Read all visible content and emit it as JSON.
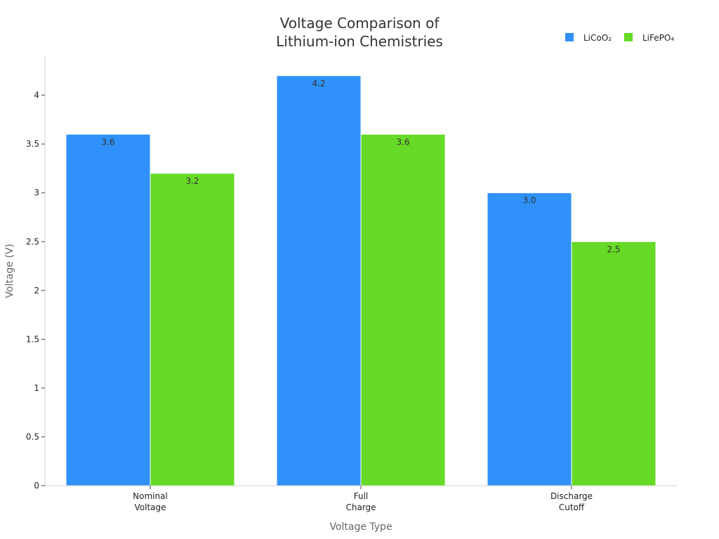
{
  "chart_data": {
    "type": "bar",
    "title": [
      "Voltage Comparison of",
      "Lithium-ion Chemistries"
    ],
    "xlabel": "Voltage Type",
    "ylabel": "Voltage (V)",
    "categories": [
      [
        "Nominal",
        "Voltage"
      ],
      [
        "Full",
        "Charge"
      ],
      [
        "Discharge",
        "Cutoff"
      ]
    ],
    "series": [
      {
        "name": "LiCoO₂",
        "color": "#2F91F9",
        "values": [
          3.6,
          4.2,
          3.0
        ],
        "labels": [
          "3.6",
          "4.2",
          "3.0"
        ]
      },
      {
        "name": "LiFePO₄",
        "color": "#66DA26",
        "values": [
          3.2,
          3.6,
          2.5
        ],
        "labels": [
          "3.2",
          "3.6",
          "2.5"
        ]
      }
    ],
    "ylim": [
      0,
      4.4
    ],
    "yticks": [
      0,
      0.5,
      1,
      1.5,
      2,
      2.5,
      3,
      3.5,
      4
    ],
    "ytick_labels": [
      "0",
      "0.5",
      "1",
      "1.5",
      "2",
      "2.5",
      "3",
      "3.5",
      "4"
    ],
    "grid": false,
    "legend_position": "top-right"
  }
}
